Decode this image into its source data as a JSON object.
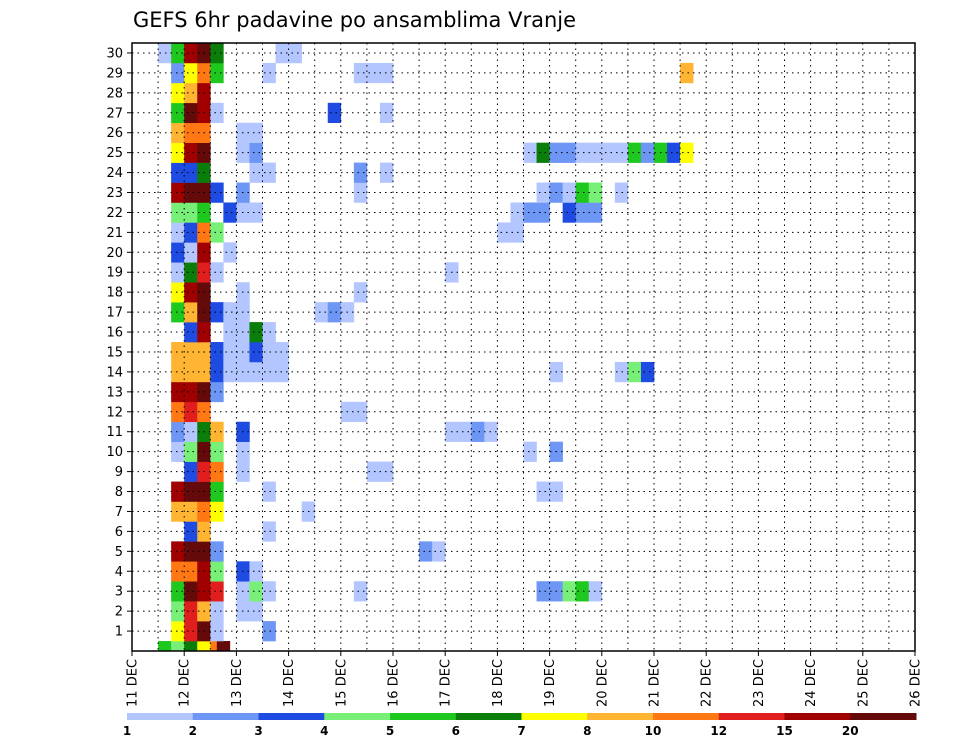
{
  "chart_data": {
    "type": "heatmap",
    "title": "GEFS 6hr padavine po ansamblima Vranje",
    "xlabel": "",
    "ylabel": "",
    "x_range": [
      "11 DEC",
      "26 DEC"
    ],
    "x_ticks": [
      "11 DEC",
      "12 DEC",
      "13 DEC",
      "14 DEC",
      "15 DEC",
      "16 DEC",
      "17 DEC",
      "18 DEC",
      "19 DEC",
      "20 DEC",
      "21 DEC",
      "22 DEC",
      "23 DEC",
      "24 DEC",
      "25 DEC",
      "26 DEC"
    ],
    "y_ticks": [
      1,
      2,
      3,
      4,
      5,
      6,
      7,
      8,
      9,
      10,
      11,
      12,
      13,
      14,
      15,
      16,
      17,
      18,
      19,
      20,
      21,
      22,
      23,
      24,
      25,
      26,
      27,
      28,
      29,
      30
    ],
    "time_step_hours": 6,
    "grid": true,
    "colorbar": {
      "labels": [
        "1",
        "2",
        "3",
        "4",
        "5",
        "6",
        "7",
        "8",
        "10",
        "12",
        "15",
        "20"
      ],
      "bins": [
        {
          "color": "#b4c6ff"
        },
        {
          "color": "#6e96f5"
        },
        {
          "color": "#1e4be1"
        },
        {
          "color": "#78f078"
        },
        {
          "color": "#1ec81e"
        },
        {
          "color": "#0a7d0a"
        },
        {
          "color": "#ffff00"
        },
        {
          "color": "#ffb432"
        },
        {
          "color": "#ff7814"
        },
        {
          "color": "#e11e1e"
        },
        {
          "color": "#a00000"
        },
        {
          "color": "#640a0a"
        }
      ]
    },
    "cells": [
      [
        0,
        2,
        5
      ],
      [
        0,
        3,
        4
      ],
      [
        0,
        4,
        6
      ],
      [
        0,
        5,
        7
      ],
      [
        0,
        6,
        9
      ],
      [
        0,
        6.5,
        12
      ],
      [
        1,
        3,
        7
      ],
      [
        1,
        4,
        10
      ],
      [
        1,
        5,
        12
      ],
      [
        1,
        6,
        1
      ],
      [
        1,
        10,
        2
      ],
      [
        2,
        3,
        4
      ],
      [
        2,
        4,
        10
      ],
      [
        2,
        5,
        8
      ],
      [
        2,
        6,
        1
      ],
      [
        2,
        8,
        1
      ],
      [
        2,
        9,
        1
      ],
      [
        3,
        3,
        5
      ],
      [
        3,
        4,
        12
      ],
      [
        3,
        5,
        11
      ],
      [
        3,
        6,
        10
      ],
      [
        3,
        8,
        1
      ],
      [
        3,
        9,
        4
      ],
      [
        3,
        10,
        1
      ],
      [
        3,
        17,
        1
      ],
      [
        3,
        31,
        2
      ],
      [
        3,
        32,
        2
      ],
      [
        3,
        33,
        4
      ],
      [
        3,
        34,
        5
      ],
      [
        3,
        35,
        1
      ],
      [
        4,
        3,
        9
      ],
      [
        4,
        4,
        9
      ],
      [
        4,
        5,
        11
      ],
      [
        4,
        6,
        4
      ],
      [
        4,
        8,
        3
      ],
      [
        4,
        9,
        1
      ],
      [
        5,
        3,
        11
      ],
      [
        5,
        4,
        12
      ],
      [
        5,
        5,
        12
      ],
      [
        5,
        6,
        2
      ],
      [
        5,
        22,
        2
      ],
      [
        5,
        23,
        1
      ],
      [
        6,
        4,
        3
      ],
      [
        6,
        5,
        8
      ],
      [
        6,
        10,
        1
      ],
      [
        7,
        3,
        8
      ],
      [
        7,
        4,
        8
      ],
      [
        7,
        5,
        9
      ],
      [
        7,
        6,
        7
      ],
      [
        7,
        13,
        1
      ],
      [
        8,
        3,
        11
      ],
      [
        8,
        4,
        12
      ],
      [
        8,
        5,
        12
      ],
      [
        8,
        6,
        5
      ],
      [
        8,
        10,
        1
      ],
      [
        8,
        31,
        1
      ],
      [
        8,
        32,
        1
      ],
      [
        9,
        4,
        3
      ],
      [
        9,
        5,
        10
      ],
      [
        9,
        6,
        9
      ],
      [
        9,
        8,
        1
      ],
      [
        9,
        18,
        1
      ],
      [
        9,
        19,
        1
      ],
      [
        10,
        3,
        1
      ],
      [
        10,
        4,
        4
      ],
      [
        10,
        5,
        12
      ],
      [
        10,
        6,
        4
      ],
      [
        10,
        8,
        1
      ],
      [
        10,
        30,
        1
      ],
      [
        10,
        32,
        2
      ],
      [
        11,
        3,
        2
      ],
      [
        11,
        4,
        1
      ],
      [
        11,
        5,
        6
      ],
      [
        11,
        6,
        8
      ],
      [
        11,
        8,
        3
      ],
      [
        11,
        24,
        1
      ],
      [
        11,
        25,
        1
      ],
      [
        11,
        26,
        2
      ],
      [
        11,
        27,
        1
      ],
      [
        12,
        3,
        9
      ],
      [
        12,
        4,
        10
      ],
      [
        12,
        5,
        9
      ],
      [
        12,
        16,
        1
      ],
      [
        12,
        17,
        1
      ],
      [
        13,
        3,
        11
      ],
      [
        13,
        4,
        11
      ],
      [
        13,
        5,
        12
      ],
      [
        13,
        6,
        2
      ],
      [
        14,
        3,
        8
      ],
      [
        14,
        4,
        8
      ],
      [
        14,
        5,
        8
      ],
      [
        14,
        6,
        3
      ],
      [
        14,
        7,
        1
      ],
      [
        14,
        8,
        1
      ],
      [
        14,
        9,
        1
      ],
      [
        14,
        10,
        1
      ],
      [
        14,
        11,
        1
      ],
      [
        14,
        32,
        1
      ],
      [
        14,
        37,
        1
      ],
      [
        14,
        38,
        4
      ],
      [
        14,
        39,
        3
      ],
      [
        15,
        3,
        8
      ],
      [
        15,
        4,
        8
      ],
      [
        15,
        5,
        8
      ],
      [
        15,
        6,
        3
      ],
      [
        15,
        7,
        1
      ],
      [
        15,
        8,
        1
      ],
      [
        15,
        9,
        3
      ],
      [
        15,
        10,
        1
      ],
      [
        15,
        11,
        1
      ],
      [
        16,
        4,
        3
      ],
      [
        16,
        5,
        11
      ],
      [
        16,
        7,
        1
      ],
      [
        16,
        8,
        1
      ],
      [
        16,
        9,
        6
      ],
      [
        16,
        10,
        1
      ],
      [
        17,
        3,
        5
      ],
      [
        17,
        4,
        8
      ],
      [
        17,
        5,
        12
      ],
      [
        17,
        6,
        3
      ],
      [
        17,
        7,
        1
      ],
      [
        17,
        8,
        1
      ],
      [
        17,
        14,
        1
      ],
      [
        17,
        15,
        2
      ],
      [
        17,
        16,
        1
      ],
      [
        18,
        3,
        7
      ],
      [
        18,
        4,
        11
      ],
      [
        18,
        5,
        12
      ],
      [
        18,
        8,
        1
      ],
      [
        18,
        17,
        1
      ],
      [
        19,
        3,
        1
      ],
      [
        19,
        4,
        6
      ],
      [
        19,
        5,
        10
      ],
      [
        19,
        6,
        1
      ],
      [
        19,
        24,
        1
      ],
      [
        20,
        3,
        3
      ],
      [
        20,
        4,
        1
      ],
      [
        20,
        5,
        11
      ],
      [
        20,
        7,
        1
      ],
      [
        21,
        3,
        1
      ],
      [
        21,
        4,
        3
      ],
      [
        21,
        5,
        9
      ],
      [
        21,
        6,
        4
      ],
      [
        21,
        28,
        1
      ],
      [
        21,
        29,
        1
      ],
      [
        22,
        3,
        4
      ],
      [
        22,
        4,
        4
      ],
      [
        22,
        5,
        5
      ],
      [
        22,
        7,
        3
      ],
      [
        22,
        8,
        1
      ],
      [
        22,
        9,
        1
      ],
      [
        22,
        29,
        1
      ],
      [
        22,
        30,
        2
      ],
      [
        22,
        31,
        2
      ],
      [
        22,
        33,
        3
      ],
      [
        22,
        34,
        2
      ],
      [
        22,
        35,
        2
      ],
      [
        23,
        3,
        11
      ],
      [
        23,
        4,
        12
      ],
      [
        23,
        5,
        12
      ],
      [
        23,
        6,
        3
      ],
      [
        23,
        8,
        2
      ],
      [
        23,
        17,
        1
      ],
      [
        23,
        31,
        1
      ],
      [
        23,
        32,
        2
      ],
      [
        23,
        33,
        1
      ],
      [
        23,
        34,
        5
      ],
      [
        23,
        35,
        4
      ],
      [
        23,
        37,
        1
      ],
      [
        24,
        3,
        3
      ],
      [
        24,
        4,
        3
      ],
      [
        24,
        5,
        6
      ],
      [
        24,
        9,
        1
      ],
      [
        24,
        10,
        1
      ],
      [
        24,
        17,
        2
      ],
      [
        24,
        19,
        1
      ],
      [
        25,
        3,
        7
      ],
      [
        25,
        4,
        11
      ],
      [
        25,
        5,
        12
      ],
      [
        25,
        8,
        1
      ],
      [
        25,
        9,
        2
      ],
      [
        25,
        30,
        1
      ],
      [
        25,
        31,
        6
      ],
      [
        25,
        32,
        2
      ],
      [
        25,
        33,
        2
      ],
      [
        25,
        34,
        1
      ],
      [
        25,
        35,
        1
      ],
      [
        25,
        36,
        1
      ],
      [
        25,
        37,
        1
      ],
      [
        25,
        38,
        5
      ],
      [
        25,
        39,
        2
      ],
      [
        25,
        40,
        5
      ],
      [
        25,
        41,
        3
      ],
      [
        25,
        42,
        7
      ],
      [
        26,
        3,
        8
      ],
      [
        26,
        4,
        9
      ],
      [
        26,
        5,
        9
      ],
      [
        26,
        8,
        1
      ],
      [
        26,
        9,
        1
      ],
      [
        27,
        3,
        5
      ],
      [
        27,
        4,
        12
      ],
      [
        27,
        5,
        11
      ],
      [
        27,
        6,
        1
      ],
      [
        27,
        15,
        3
      ],
      [
        27,
        19,
        1
      ],
      [
        28,
        3,
        7
      ],
      [
        28,
        4,
        8
      ],
      [
        28,
        5,
        11
      ],
      [
        29,
        3,
        2
      ],
      [
        29,
        4,
        7
      ],
      [
        29,
        5,
        9
      ],
      [
        29,
        6,
        5
      ],
      [
        29,
        10,
        1
      ],
      [
        29,
        17,
        1
      ],
      [
        29,
        18,
        1
      ],
      [
        29,
        19,
        1
      ],
      [
        29,
        42,
        8
      ],
      [
        30,
        2,
        1
      ],
      [
        30,
        3,
        5
      ],
      [
        30,
        4,
        11
      ],
      [
        30,
        5,
        12
      ],
      [
        30,
        6,
        6
      ],
      [
        30,
        11,
        1
      ],
      [
        30,
        12,
        1
      ]
    ]
  }
}
